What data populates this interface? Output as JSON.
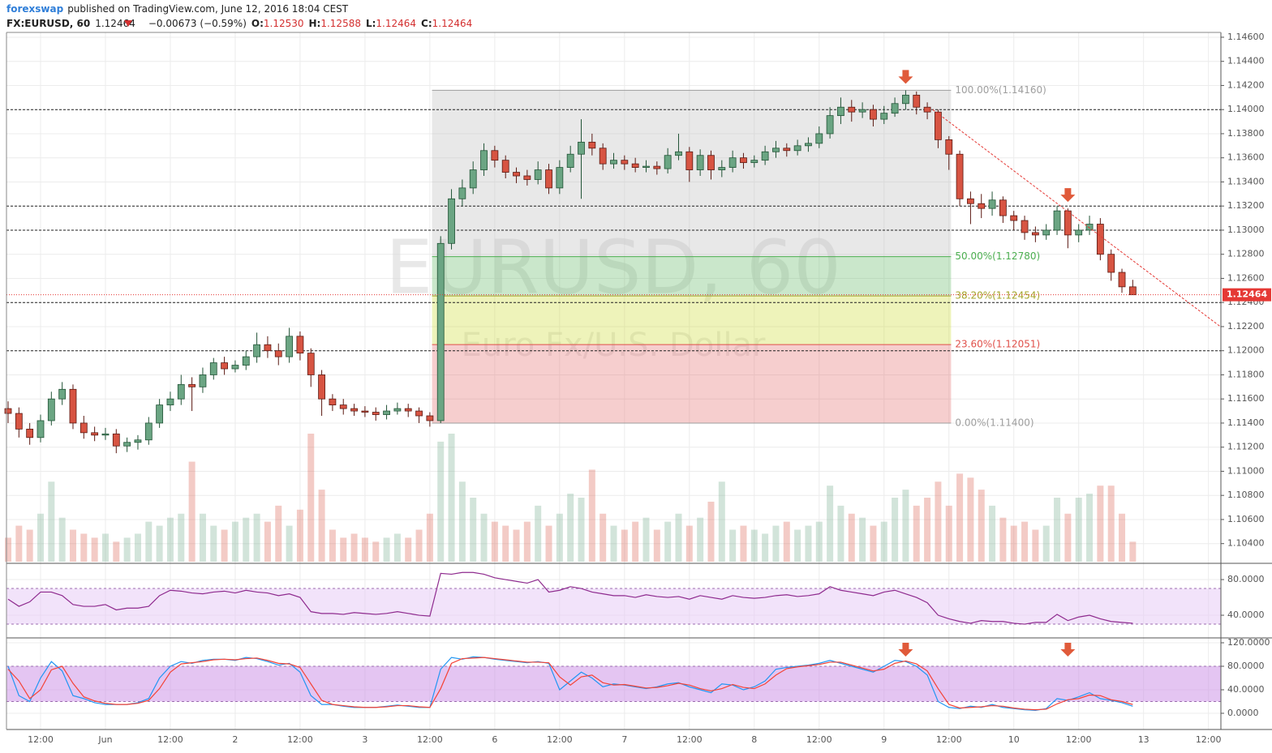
{
  "header": {
    "author": "forexswap",
    "published": "published on TradingView.com, June 12, 2016 18:04 CEST",
    "symbol": "FX:EURUSD, 60",
    "last": "1.12464",
    "change": "−0.00673 (−0.59%)",
    "ohlc": [
      {
        "label": "O:",
        "value": "1.12530"
      },
      {
        "label": "H:",
        "value": "1.12588"
      },
      {
        "label": "L:",
        "value": "1.12464"
      },
      {
        "label": "C:",
        "value": "1.12464"
      }
    ]
  },
  "chart_data": [
    {
      "type": "candlestick",
      "watermark": [
        "EURUSD, 60",
        "Euro Fx/U.S. Dollar"
      ],
      "up_color": "#6ba583",
      "down_color": "#d75442",
      "grid": true,
      "xlim": [
        -0.15,
        112.15
      ],
      "xticks": [
        {
          "value": 3,
          "label": "12:00"
        },
        {
          "value": 9,
          "label": "Jun"
        },
        {
          "value": 15,
          "label": "12:00"
        },
        {
          "value": 21,
          "label": "2"
        },
        {
          "value": 27,
          "label": "12:00"
        },
        {
          "value": 33,
          "label": "3"
        },
        {
          "value": 39,
          "label": "12:00"
        },
        {
          "value": 45,
          "label": "6"
        },
        {
          "value": 51,
          "label": "12:00"
        },
        {
          "value": 57,
          "label": "7"
        },
        {
          "value": 63,
          "label": "12:00"
        },
        {
          "value": 69,
          "label": "8"
        },
        {
          "value": 75,
          "label": "12:00"
        },
        {
          "value": 81,
          "label": "9"
        },
        {
          "value": 87,
          "label": "12:00"
        },
        {
          "value": 93,
          "label": "10"
        },
        {
          "value": 99,
          "label": "12:00"
        },
        {
          "value": 105,
          "label": "13"
        },
        {
          "value": 111,
          "label": "12:00"
        }
      ],
      "ylim": [
        1.1025,
        1.1464
      ],
      "yticks": [
        {
          "value": 1.146,
          "label": "1.14600"
        },
        {
          "value": 1.144,
          "label": "1.14400"
        },
        {
          "value": 1.142,
          "label": "1.14200"
        },
        {
          "value": 1.14,
          "label": "1.14000"
        },
        {
          "value": 1.138,
          "label": "1.13800"
        },
        {
          "value": 1.136,
          "label": "1.13600"
        },
        {
          "value": 1.134,
          "label": "1.13400"
        },
        {
          "value": 1.132,
          "label": "1.13200"
        },
        {
          "value": 1.13,
          "label": "1.13000"
        },
        {
          "value": 1.128,
          "label": "1.12800"
        },
        {
          "value": 1.126,
          "label": "1.12600"
        },
        {
          "value": 1.124,
          "label": "1.12400"
        },
        {
          "value": 1.122,
          "label": "1.12200"
        },
        {
          "value": 1.12,
          "label": "1.12000"
        },
        {
          "value": 1.118,
          "label": "1.11800"
        },
        {
          "value": 1.116,
          "label": "1.11600"
        },
        {
          "value": 1.114,
          "label": "1.11400"
        },
        {
          "value": 1.112,
          "label": "1.11200"
        },
        {
          "value": 1.11,
          "label": "1.11000"
        },
        {
          "value": 1.108,
          "label": "1.10800"
        },
        {
          "value": 1.106,
          "label": "1.10600"
        },
        {
          "value": 1.104,
          "label": "1.10400"
        }
      ],
      "open": [
        1.1152,
        1.1148,
        1.1135,
        1.1128,
        1.1142,
        1.116,
        1.1168,
        1.114,
        1.1132,
        1.113,
        1.1131,
        1.1121,
        1.1124,
        1.1126,
        1.114,
        1.1155,
        1.116,
        1.1172,
        1.117,
        1.118,
        1.119,
        1.1185,
        1.1188,
        1.1195,
        1.1205,
        1.12,
        1.1195,
        1.1212,
        1.1198,
        1.118,
        1.116,
        1.1155,
        1.1152,
        1.115,
        1.1149,
        1.1147,
        1.115,
        1.1152,
        1.115,
        1.1146,
        1.1142,
        1.1289,
        1.1326,
        1.1335,
        1.135,
        1.1366,
        1.1358,
        1.1348,
        1.1345,
        1.1342,
        1.135,
        1.1335,
        1.1352,
        1.1363,
        1.1373,
        1.1368,
        1.1355,
        1.1358,
        1.1355,
        1.1352,
        1.1353,
        1.1351,
        1.1362,
        1.1365,
        1.135,
        1.1362,
        1.135,
        1.1352,
        1.136,
        1.1356,
        1.1358,
        1.1365,
        1.1368,
        1.1366,
        1.137,
        1.1372,
        1.138,
        1.1395,
        1.1402,
        1.1398,
        1.14,
        1.1392,
        1.1397,
        1.1405,
        1.1412,
        1.1402,
        1.1398,
        1.1375,
        1.1363,
        1.1326,
        1.1322,
        1.1318,
        1.1325,
        1.1312,
        1.1308,
        1.1298,
        1.1296,
        1.13,
        1.1316,
        1.1296,
        1.13,
        1.1305,
        1.128,
        1.1265,
        1.1253
      ],
      "high": [
        1.1158,
        1.1153,
        1.114,
        1.1147,
        1.1166,
        1.1174,
        1.1172,
        1.1146,
        1.1137,
        1.1136,
        1.1135,
        1.1128,
        1.113,
        1.1145,
        1.116,
        1.1166,
        1.118,
        1.1178,
        1.1186,
        1.1194,
        1.1195,
        1.1192,
        1.12,
        1.1215,
        1.1212,
        1.1206,
        1.1219,
        1.1216,
        1.1202,
        1.1184,
        1.1164,
        1.116,
        1.1156,
        1.1154,
        1.1153,
        1.1155,
        1.1157,
        1.1156,
        1.1153,
        1.1149,
        1.1295,
        1.1334,
        1.1342,
        1.1357,
        1.1372,
        1.137,
        1.1362,
        1.1352,
        1.135,
        1.1357,
        1.1355,
        1.1358,
        1.137,
        1.1392,
        1.138,
        1.1372,
        1.1364,
        1.1362,
        1.136,
        1.1358,
        1.1357,
        1.1368,
        1.138,
        1.1369,
        1.1367,
        1.1366,
        1.1358,
        1.1366,
        1.1364,
        1.1362,
        1.137,
        1.1374,
        1.1372,
        1.1375,
        1.1377,
        1.1386,
        1.1402,
        1.141,
        1.1408,
        1.1406,
        1.1404,
        1.1403,
        1.141,
        1.1416,
        1.1415,
        1.1406,
        1.14,
        1.1378,
        1.1366,
        1.1332,
        1.133,
        1.1332,
        1.1328,
        1.1316,
        1.1312,
        1.1303,
        1.1305,
        1.132,
        1.1318,
        1.1305,
        1.1312,
        1.131,
        1.1284,
        1.1268,
        1.12588
      ],
      "low": [
        1.114,
        1.1128,
        1.1122,
        1.1124,
        1.1138,
        1.1155,
        1.1135,
        1.1127,
        1.1125,
        1.1126,
        1.1115,
        1.1116,
        1.1118,
        1.1122,
        1.1136,
        1.115,
        1.1155,
        1.115,
        1.1165,
        1.1176,
        1.118,
        1.1182,
        1.1184,
        1.119,
        1.1194,
        1.1188,
        1.119,
        1.1192,
        1.117,
        1.1146,
        1.115,
        1.1147,
        1.1146,
        1.1145,
        1.1142,
        1.1143,
        1.1147,
        1.1145,
        1.114,
        1.1137,
        1.114,
        1.1284,
        1.132,
        1.133,
        1.1345,
        1.1352,
        1.1343,
        1.1339,
        1.1337,
        1.1338,
        1.133,
        1.133,
        1.1348,
        1.1326,
        1.1362,
        1.135,
        1.1351,
        1.135,
        1.1348,
        1.1348,
        1.1346,
        1.1347,
        1.1358,
        1.134,
        1.1345,
        1.1342,
        1.1344,
        1.1348,
        1.1351,
        1.1352,
        1.1354,
        1.136,
        1.1361,
        1.1362,
        1.1365,
        1.1368,
        1.1376,
        1.1388,
        1.139,
        1.1393,
        1.1386,
        1.1388,
        1.1394,
        1.14,
        1.1396,
        1.1392,
        1.1368,
        1.135,
        1.132,
        1.1305,
        1.131,
        1.1312,
        1.1306,
        1.13,
        1.1292,
        1.129,
        1.1292,
        1.1296,
        1.1285,
        1.129,
        1.1296,
        1.1275,
        1.1258,
        1.1248,
        1.12464
      ],
      "close": [
        1.1148,
        1.1135,
        1.1128,
        1.1142,
        1.116,
        1.1168,
        1.114,
        1.1132,
        1.113,
        1.1131,
        1.1121,
        1.1124,
        1.1126,
        1.114,
        1.1155,
        1.116,
        1.1172,
        1.117,
        1.118,
        1.119,
        1.1185,
        1.1188,
        1.1195,
        1.1205,
        1.12,
        1.1195,
        1.1212,
        1.1198,
        1.118,
        1.116,
        1.1155,
        1.1152,
        1.115,
        1.1149,
        1.1147,
        1.115,
        1.1152,
        1.115,
        1.1146,
        1.1142,
        1.1289,
        1.1326,
        1.1335,
        1.135,
        1.1366,
        1.1358,
        1.1348,
        1.1345,
        1.1342,
        1.135,
        1.1335,
        1.1352,
        1.1363,
        1.1373,
        1.1368,
        1.1355,
        1.1358,
        1.1355,
        1.1352,
        1.1353,
        1.1351,
        1.1362,
        1.1365,
        1.135,
        1.1362,
        1.135,
        1.1352,
        1.136,
        1.1356,
        1.1358,
        1.1365,
        1.1368,
        1.1366,
        1.137,
        1.1372,
        1.138,
        1.1395,
        1.1402,
        1.1398,
        1.14,
        1.1392,
        1.1397,
        1.1405,
        1.1412,
        1.1402,
        1.1398,
        1.1375,
        1.1363,
        1.1326,
        1.1322,
        1.1318,
        1.1325,
        1.1312,
        1.1308,
        1.1298,
        1.1296,
        1.13,
        1.1316,
        1.1296,
        1.13,
        1.1305,
        1.128,
        1.1265,
        1.1253,
        1.12464
      ],
      "volume": [
        30,
        45,
        40,
        60,
        100,
        55,
        40,
        35,
        30,
        35,
        25,
        30,
        35,
        50,
        45,
        55,
        60,
        125,
        60,
        45,
        40,
        50,
        55,
        60,
        50,
        70,
        45,
        65,
        160,
        90,
        40,
        30,
        35,
        30,
        25,
        30,
        35,
        30,
        40,
        60,
        150,
        160,
        100,
        80,
        60,
        50,
        45,
        40,
        50,
        70,
        45,
        60,
        85,
        80,
        115,
        60,
        45,
        40,
        50,
        55,
        40,
        50,
        60,
        45,
        55,
        75,
        100,
        40,
        45,
        40,
        35,
        45,
        50,
        40,
        45,
        50,
        95,
        70,
        60,
        55,
        45,
        50,
        80,
        90,
        70,
        80,
        100,
        70,
        110,
        105,
        90,
        70,
        55,
        45,
        50,
        40,
        45,
        80,
        60,
        80,
        85,
        95,
        95,
        60,
        25
      ],
      "fib": {
        "x": [
          39.2,
          87.2
        ],
        "fills": [
          "#bdbdbd",
          "#66bb6a",
          "#cddc39",
          "#e57373"
        ],
        "levels": [
          {
            "value": 1.1416,
            "label": "100.00%(1.14160)",
            "color": "#9e9e9e"
          },
          {
            "value": 1.1278,
            "label": "50.00%(1.12780)",
            "color": "#4caf50"
          },
          {
            "value": 1.12454,
            "label": "38.20%(1.12454)",
            "color": "#a5a52a"
          },
          {
            "value": 1.12051,
            "label": "23.60%(1.12051)",
            "color": "#e0504a"
          },
          {
            "value": 1.114,
            "label": "0.00%(1.11400)",
            "color": "#9e9e9e"
          }
        ]
      },
      "hlines": [
        1.14,
        1.132,
        1.13,
        1.124,
        1.12
      ],
      "trendline": {
        "x": [
          85.5,
          112.1
        ],
        "y": [
          1.14,
          1.122
        ],
        "color": "#e53935"
      },
      "arrows": {
        "x": [
          83,
          98
        ],
        "color": "#e05a3a"
      },
      "last_price": {
        "value": 1.12464,
        "label": "1.12464",
        "color": "#e53935"
      }
    },
    {
      "type": "line",
      "ylim": [
        16.4,
        96.4
      ],
      "yticks": [
        {
          "value": 80,
          "label": "80.0000"
        },
        {
          "value": 40,
          "label": "40.0000"
        }
      ],
      "band": [
        30,
        70
      ],
      "band_color": "#e6c8f5",
      "series": [
        {
          "color": "#8e2a8e",
          "values": [
            58,
            50,
            55,
            66,
            66,
            62,
            52,
            50,
            50,
            52,
            46,
            48,
            48,
            50,
            62,
            68,
            67,
            65,
            64,
            66,
            67,
            65,
            68,
            66,
            65,
            62,
            64,
            60,
            44,
            42,
            42,
            41,
            43,
            42,
            41,
            42,
            44,
            42,
            40,
            39,
            87,
            86,
            88,
            88,
            86,
            82,
            80,
            78,
            76,
            80,
            66,
            68,
            72,
            70,
            66,
            64,
            62,
            62,
            60,
            63,
            61,
            60,
            61,
            58,
            62,
            60,
            58,
            62,
            60,
            59,
            60,
            62,
            63,
            61,
            62,
            64,
            72,
            68,
            66,
            64,
            62,
            66,
            68,
            64,
            60,
            54,
            40,
            36,
            33,
            31,
            34,
            33,
            33,
            31,
            30,
            32,
            32,
            41,
            34,
            38,
            40,
            36,
            33,
            32,
            31
          ]
        }
      ]
    },
    {
      "type": "line",
      "ylim": [
        -27.6,
        126.9
      ],
      "yticks": [
        {
          "value": 120,
          "label": "120.0000"
        },
        {
          "value": 80,
          "label": "80.0000"
        },
        {
          "value": 40,
          "label": "40.0000"
        },
        {
          "value": 0,
          "label": "0.0000"
        }
      ],
      "band": [
        20,
        80
      ],
      "band_color": "#c98ce6",
      "series": [
        {
          "color": "#2196f3",
          "values": [
            80,
            30,
            20,
            60,
            88,
            72,
            30,
            25,
            18,
            15,
            15,
            15,
            18,
            25,
            60,
            80,
            88,
            85,
            90,
            92,
            92,
            90,
            95,
            93,
            88,
            82,
            85,
            70,
            30,
            15,
            15,
            12,
            10,
            10,
            10,
            12,
            14,
            12,
            10,
            10,
            75,
            95,
            92,
            96,
            95,
            92,
            90,
            88,
            86,
            88,
            85,
            40,
            55,
            70,
            60,
            45,
            50,
            48,
            45,
            42,
            45,
            50,
            52,
            45,
            40,
            35,
            50,
            48,
            40,
            45,
            55,
            75,
            78,
            80,
            82,
            85,
            90,
            85,
            80,
            75,
            70,
            80,
            90,
            88,
            80,
            65,
            20,
            10,
            8,
            12,
            10,
            15,
            10,
            8,
            6,
            5,
            8,
            25,
            22,
            28,
            35,
            25,
            22,
            18,
            12
          ]
        },
        {
          "color": "#f44336",
          "values": [
            75,
            55,
            25,
            40,
            74,
            80,
            51,
            28,
            21,
            17,
            15,
            15,
            17,
            22,
            42,
            70,
            84,
            86,
            88,
            91,
            92,
            91,
            93,
            94,
            90,
            85,
            84,
            78,
            50,
            22,
            15,
            13,
            11,
            10,
            10,
            11,
            13,
            13,
            11,
            10,
            42,
            85,
            93,
            94,
            95,
            93,
            91,
            89,
            87,
            87,
            86,
            62,
            48,
            62,
            65,
            52,
            48,
            49,
            46,
            43,
            44,
            47,
            51,
            48,
            42,
            38,
            42,
            49,
            44,
            42,
            50,
            65,
            76,
            79,
            81,
            83,
            87,
            87,
            82,
            77,
            72,
            75,
            85,
            89,
            84,
            72,
            42,
            15,
            9,
            10,
            11,
            13,
            12,
            9,
            7,
            6,
            7,
            16,
            23,
            25,
            31,
            30,
            23,
            20,
            15
          ]
        }
      ]
    }
  ]
}
